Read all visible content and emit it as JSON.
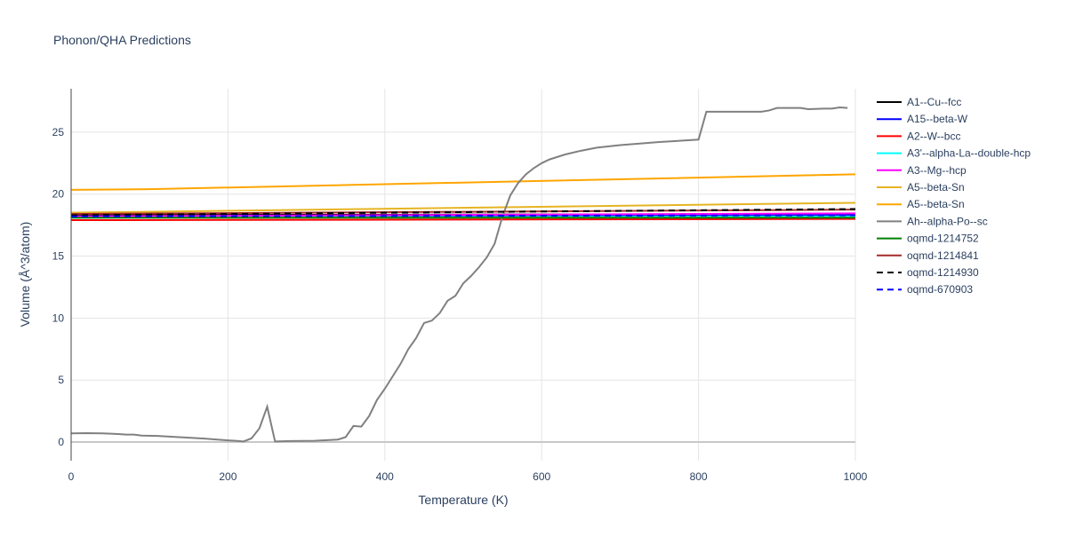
{
  "chart_data": {
    "type": "line",
    "title": "Phonon/QHA Predictions",
    "xlabel": "Temperature (K)",
    "ylabel": "Volume (Å^3/atom)",
    "xlim": [
      0,
      1000
    ],
    "ylim": [
      -1.5,
      28.5
    ],
    "xticks": [
      0,
      200,
      400,
      600,
      800,
      1000
    ],
    "yticks": [
      0,
      5,
      10,
      15,
      20,
      25
    ],
    "grid": true,
    "legend": "right",
    "series": [
      {
        "name": "A1--Cu--fcc",
        "color": "#000000",
        "dash": false,
        "x": [
          0,
          1000
        ],
        "y": [
          18.3,
          18.4
        ]
      },
      {
        "name": "A15--beta-W",
        "color": "#0000ff",
        "dash": false,
        "x": [
          0,
          1000
        ],
        "y": [
          18.2,
          18.3
        ]
      },
      {
        "name": "A2--W--bcc",
        "color": "#ff0000",
        "dash": false,
        "x": [
          0,
          1000
        ],
        "y": [
          17.9,
          18.0
        ]
      },
      {
        "name": "A3'--alpha-La--double-hcp",
        "color": "#00ffff",
        "dash": false,
        "x": [
          0,
          1000
        ],
        "y": [
          18.1,
          18.2
        ]
      },
      {
        "name": "A3--Mg--hcp",
        "color": "#ff00ff",
        "dash": false,
        "x": [
          0,
          1000
        ],
        "y": [
          18.2,
          18.45
        ]
      },
      {
        "name": "A5--beta-Sn",
        "color": "#e6b422",
        "dash": false,
        "x": [
          0,
          1000
        ],
        "y": [
          18.5,
          19.3
        ]
      },
      {
        "name": "A5--beta-Sn",
        "color": "#ffa500",
        "dash": false,
        "x": [
          0,
          100,
          1000
        ],
        "y": [
          20.35,
          20.4,
          21.6
        ]
      },
      {
        "name": "Ah--alpha-Po--sc",
        "color": "#808080",
        "dash": false,
        "x": [
          0,
          20,
          40,
          60,
          70,
          80,
          90,
          110,
          130,
          150,
          170,
          190,
          210,
          220,
          230,
          240,
          250,
          260,
          280,
          310,
          340,
          350,
          360,
          370,
          380,
          390,
          400,
          410,
          420,
          430,
          440,
          450,
          460,
          470,
          480,
          490,
          500,
          510,
          520,
          530,
          540,
          550,
          560,
          570,
          580,
          590,
          600,
          610,
          630,
          650,
          670,
          700,
          750,
          800,
          810,
          880,
          890,
          900,
          930,
          940,
          960,
          970,
          980,
          990
        ],
        "y": [
          0.7,
          0.72,
          0.7,
          0.65,
          0.6,
          0.6,
          0.52,
          0.5,
          0.42,
          0.35,
          0.28,
          0.18,
          0.1,
          0.05,
          0.3,
          1.1,
          2.85,
          0.05,
          0.08,
          0.1,
          0.2,
          0.4,
          1.3,
          1.25,
          2.1,
          3.4,
          4.3,
          5.3,
          6.3,
          7.5,
          8.4,
          9.6,
          9.8,
          10.4,
          11.4,
          11.8,
          12.8,
          13.4,
          14.1,
          14.9,
          16.0,
          18.2,
          19.9,
          20.9,
          21.6,
          22.1,
          22.5,
          22.8,
          23.2,
          23.5,
          23.75,
          23.95,
          24.2,
          24.4,
          26.65,
          26.65,
          26.75,
          26.95,
          26.95,
          26.85,
          26.9,
          26.9,
          27.0,
          26.95
        ]
      },
      {
        "name": "oqmd-1214752",
        "color": "#008000",
        "dash": false,
        "x": [
          0,
          1000
        ],
        "y": [
          18.1,
          18.1
        ]
      },
      {
        "name": "oqmd-1214841",
        "color": "#a52a2a",
        "dash": false,
        "x": [
          0,
          1000
        ],
        "y": [
          18.4,
          18.75
        ]
      },
      {
        "name": "oqmd-1214930",
        "color": "#000000",
        "dash": true,
        "x": [
          0,
          1000
        ],
        "y": [
          18.3,
          18.8
        ]
      },
      {
        "name": "oqmd-670903",
        "color": "#0000ff",
        "dash": true,
        "x": [
          0,
          1000
        ],
        "y": [
          18.2,
          18.3
        ]
      }
    ]
  }
}
